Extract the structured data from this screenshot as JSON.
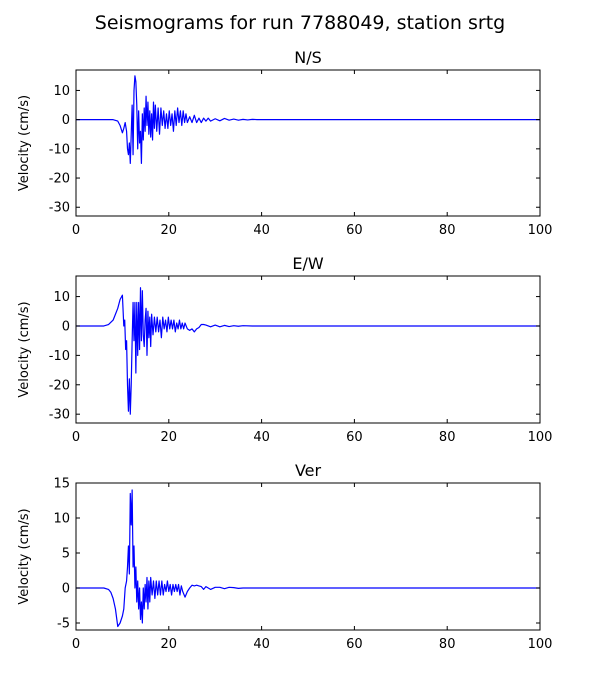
{
  "figure": {
    "title": "Seismograms for run 7788049, station srtg",
    "line_color": "#0000ff"
  },
  "chart_data": [
    {
      "type": "line",
      "title": "N/S",
      "xlabel": "",
      "ylabel": "Velocity (cm/s)",
      "xlim": [
        0,
        100
      ],
      "ylim": [
        -33,
        17
      ],
      "xticks": [
        0,
        20,
        40,
        60,
        80,
        100
      ],
      "yticks": [
        10,
        0,
        -10,
        -20,
        -30
      ],
      "grid": false,
      "series": [
        {
          "x": [
            0,
            8,
            9,
            9.5,
            10,
            10.3,
            10.6,
            10.9,
            11.1,
            11.3,
            11.5,
            11.7,
            11.9,
            12.1,
            12.3,
            12.5,
            12.7,
            12.9,
            13.1,
            13.3,
            13.5,
            13.7,
            13.9,
            14.1,
            14.3,
            14.5,
            14.7,
            14.9,
            15.1,
            15.3,
            15.5,
            15.7,
            15.9,
            16.1,
            16.3,
            16.5,
            16.7,
            16.9,
            17.1,
            17.4,
            17.7,
            18.0,
            18.3,
            18.6,
            18.9,
            19.2,
            19.5,
            19.8,
            20.1,
            20.4,
            20.7,
            21.0,
            21.3,
            21.6,
            21.9,
            22.2,
            22.5,
            22.8,
            23.1,
            23.4,
            23.7,
            24.0,
            24.5,
            25.0,
            25.5,
            26.0,
            26.5,
            27.0,
            27.5,
            28.0,
            28.5,
            29.0,
            30.0,
            31.0,
            32.0,
            33.0,
            34.0,
            35.0,
            36.0,
            37.0,
            38.0,
            39.0,
            40.0,
            45.0,
            100.0
          ],
          "y": [
            0,
            0,
            -0.5,
            -2,
            -4.5,
            -3,
            -1,
            -4,
            -10,
            -12,
            -8,
            -15,
            -5,
            5,
            -12,
            10,
            15,
            13,
            5,
            -10,
            3,
            -8,
            -4,
            -15,
            2,
            -7,
            4,
            -4,
            8,
            -2,
            6,
            -5,
            3,
            -6,
            2,
            -7,
            6,
            -3,
            5,
            -4,
            4,
            -5,
            4,
            -2,
            3,
            -3,
            2,
            -3,
            3,
            -2,
            2,
            -4,
            3,
            -2,
            4,
            -1,
            3,
            -2,
            3,
            -1,
            2,
            -1,
            1,
            -1,
            1.5,
            -1,
            0.5,
            -1,
            0.5,
            -0.5,
            0.5,
            -0.5,
            0.3,
            -0.4,
            0.4,
            -0.2,
            0.2,
            -0.2,
            0.1,
            -0.1,
            0.1,
            0,
            0,
            0,
            0
          ]
        }
      ]
    },
    {
      "type": "line",
      "title": "E/W",
      "xlabel": "",
      "ylabel": "Velocity (cm/s)",
      "xlim": [
        0,
        100
      ],
      "ylim": [
        -33,
        17
      ],
      "xticks": [
        0,
        20,
        40,
        60,
        80,
        100
      ],
      "yticks": [
        10,
        0,
        -10,
        -20,
        -30
      ],
      "grid": false,
      "series": [
        {
          "x": [
            0,
            6,
            7,
            8,
            8.5,
            9,
            9.5,
            10,
            10.3,
            10.5,
            10.7,
            10.9,
            11.1,
            11.3,
            11.5,
            11.7,
            11.9,
            12.1,
            12.3,
            12.5,
            12.7,
            12.9,
            13.1,
            13.3,
            13.5,
            13.7,
            13.9,
            14.1,
            14.3,
            14.5,
            14.7,
            14.9,
            15.1,
            15.3,
            15.5,
            15.7,
            15.9,
            16.1,
            16.3,
            16.6,
            16.9,
            17.2,
            17.5,
            17.8,
            18.1,
            18.4,
            18.7,
            19.0,
            19.3,
            19.6,
            19.9,
            20.2,
            20.5,
            20.8,
            21.1,
            21.4,
            21.7,
            22.0,
            22.3,
            22.6,
            22.9,
            23.2,
            23.5,
            24.0,
            24.5,
            25.0,
            25.5,
            26.0,
            26.5,
            27.0,
            27.5,
            28.0,
            29.0,
            30.0,
            31.0,
            32.0,
            33.0,
            34.0,
            35.0,
            36.0,
            38.0,
            40.0,
            45.0,
            100.0
          ],
          "y": [
            0,
            0,
            0.5,
            2,
            4,
            6,
            9,
            10.5,
            0,
            2,
            -8,
            -5,
            -20,
            -29,
            -18,
            -30,
            -20,
            -5,
            8,
            -5,
            8,
            -16,
            8,
            -10,
            8,
            -8,
            13,
            -5,
            12,
            -3,
            -7,
            2,
            6,
            -10,
            5,
            -4,
            3,
            -7,
            4,
            -3,
            3,
            -2,
            3,
            -2,
            2,
            -4,
            3,
            -1,
            2,
            -2,
            3,
            -1,
            2,
            -1,
            2,
            -2,
            1,
            -1,
            2,
            -1,
            1,
            -1,
            1,
            -1,
            -1.5,
            -1,
            -2,
            -1,
            -0.5,
            0.5,
            0.5,
            0.3,
            -0.3,
            0.3,
            -0.3,
            0.2,
            -0.2,
            0.1,
            -0.1,
            0.1,
            0,
            0,
            0,
            0
          ]
        }
      ]
    },
    {
      "type": "line",
      "title": "Ver",
      "xlabel": "",
      "ylabel": "Velocity (cm/s)",
      "xlim": [
        0,
        100
      ],
      "ylim": [
        -6,
        15
      ],
      "xticks": [
        0,
        20,
        40,
        60,
        80,
        100
      ],
      "yticks": [
        15,
        10,
        5,
        0,
        -5
      ],
      "grid": false,
      "series": [
        {
          "x": [
            0,
            6,
            7,
            7.5,
            8,
            8.5,
            9,
            9.5,
            10,
            10.3,
            10.6,
            10.9,
            11.1,
            11.3,
            11.5,
            11.7,
            11.9,
            12.1,
            12.3,
            12.5,
            12.7,
            12.9,
            13.1,
            13.3,
            13.5,
            13.7,
            13.9,
            14.1,
            14.3,
            14.5,
            14.7,
            14.9,
            15.1,
            15.3,
            15.5,
            15.7,
            15.9,
            16.1,
            16.4,
            16.7,
            17.0,
            17.3,
            17.6,
            17.9,
            18.2,
            18.5,
            18.8,
            19.1,
            19.4,
            19.7,
            20.0,
            20.3,
            20.6,
            20.9,
            21.2,
            21.5,
            21.8,
            22.1,
            22.4,
            22.7,
            23.0,
            23.5,
            24.0,
            24.5,
            25.0,
            25.5,
            26.0,
            26.5,
            27.0,
            27.5,
            28.0,
            29.0,
            30.0,
            31.0,
            32.0,
            33.0,
            34.0,
            35.0,
            36.0,
            38.0,
            40.0,
            45.0,
            100.0
          ],
          "y": [
            0,
            0,
            -0.2,
            -0.6,
            -1.5,
            -3,
            -5.5,
            -5,
            -4,
            -3,
            0,
            1,
            3,
            6,
            2,
            13.5,
            9,
            14,
            3,
            6,
            0,
            3,
            -2,
            1,
            -3,
            0,
            -4.5,
            -2,
            -5,
            0,
            -3,
            0.5,
            -2,
            1.5,
            -3,
            1,
            -2,
            1.5,
            -1,
            1,
            -1.5,
            1,
            -1,
            1,
            -1,
            1,
            -1,
            0.5,
            -0.5,
            1,
            -0.5,
            0.5,
            -1,
            0.5,
            -0.5,
            0.5,
            -0.5,
            0.5,
            -1,
            0.3,
            -0.5,
            -1.3,
            -0.5,
            0,
            0.4,
            0.3,
            0.4,
            0.3,
            0.2,
            -0.2,
            0.2,
            -0.2,
            0.1,
            0.1,
            -0.1,
            0.1,
            0.05,
            -0.05,
            0,
            0,
            0,
            0,
            0
          ]
        }
      ]
    }
  ]
}
